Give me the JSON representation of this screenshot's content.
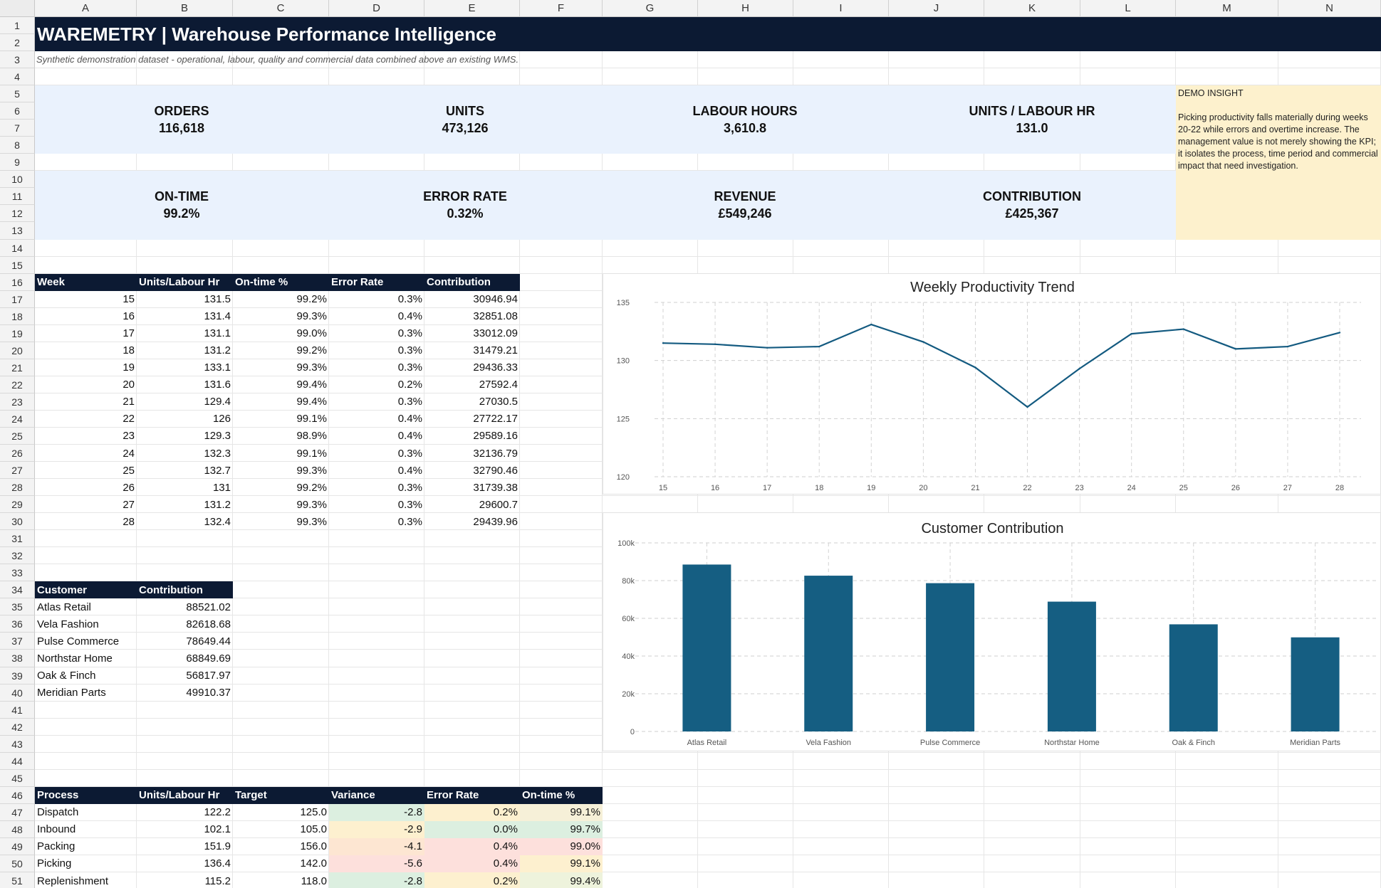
{
  "columns": [
    "A",
    "B",
    "C",
    "D",
    "E",
    "F",
    "G",
    "H",
    "I",
    "J",
    "K",
    "L",
    "M",
    "N"
  ],
  "row_count": 51,
  "title": "WAREMETRY | Warehouse Performance Intelligence",
  "subtitle": "Synthetic demonstration dataset - operational, labour, quality and commercial data combined above an existing WMS.",
  "kpis_row1": [
    {
      "label": "ORDERS",
      "value": "116,618"
    },
    {
      "label": "UNITS",
      "value": "473,126"
    },
    {
      "label": "LABOUR HOURS",
      "value": "3,610.8"
    },
    {
      "label": "UNITS / LABOUR HR",
      "value": "131.0"
    }
  ],
  "kpis_row2": [
    {
      "label": "ON-TIME",
      "value": "99.2%"
    },
    {
      "label": "ERROR RATE",
      "value": "0.32%"
    },
    {
      "label": "REVENUE",
      "value": "£549,246"
    },
    {
      "label": "CONTRIBUTION",
      "value": "£425,367"
    }
  ],
  "insight": {
    "heading": "DEMO INSIGHT",
    "body": "Picking productivity falls materially during weeks 20-22 while errors and overtime increase. The management value is not merely showing the KPI; it isolates the process, time period and commercial impact that need investigation."
  },
  "weekly_table": {
    "headers": [
      "Week",
      "Units/Labour Hr",
      "On-time %",
      "Error Rate",
      "Contribution"
    ],
    "rows": [
      [
        "15",
        "131.5",
        "99.2%",
        "0.3%",
        "30946.94"
      ],
      [
        "16",
        "131.4",
        "99.3%",
        "0.4%",
        "32851.08"
      ],
      [
        "17",
        "131.1",
        "99.0%",
        "0.3%",
        "33012.09"
      ],
      [
        "18",
        "131.2",
        "99.2%",
        "0.3%",
        "31479.21"
      ],
      [
        "19",
        "133.1",
        "99.3%",
        "0.3%",
        "29436.33"
      ],
      [
        "20",
        "131.6",
        "99.4%",
        "0.2%",
        "27592.4"
      ],
      [
        "21",
        "129.4",
        "99.4%",
        "0.3%",
        "27030.5"
      ],
      [
        "22",
        "126",
        "99.1%",
        "0.4%",
        "27722.17"
      ],
      [
        "23",
        "129.3",
        "98.9%",
        "0.4%",
        "29589.16"
      ],
      [
        "24",
        "132.3",
        "99.1%",
        "0.3%",
        "32136.79"
      ],
      [
        "25",
        "132.7",
        "99.3%",
        "0.4%",
        "32790.46"
      ],
      [
        "26",
        "131",
        "99.2%",
        "0.3%",
        "31739.38"
      ],
      [
        "27",
        "131.2",
        "99.3%",
        "0.3%",
        "29600.7"
      ],
      [
        "28",
        "132.4",
        "99.3%",
        "0.3%",
        "29439.96"
      ]
    ]
  },
  "customer_table": {
    "headers": [
      "Customer",
      "Contribution"
    ],
    "rows": [
      [
        "Atlas Retail",
        "88521.02"
      ],
      [
        "Vela Fashion",
        "82618.68"
      ],
      [
        "Pulse Commerce",
        "78649.44"
      ],
      [
        "Northstar Home",
        "68849.69"
      ],
      [
        "Oak & Finch",
        "56817.97"
      ],
      [
        "Meridian Parts",
        "49910.37"
      ]
    ]
  },
  "process_table": {
    "headers": [
      "Process",
      "Units/Labour Hr",
      "Target",
      "Variance",
      "Error Rate",
      "On-time %"
    ],
    "rows": [
      [
        "Dispatch",
        "122.2",
        "125.0",
        "-2.8",
        "0.2%",
        "99.1%"
      ],
      [
        "Inbound",
        "102.1",
        "105.0",
        "-2.9",
        "0.0%",
        "99.7%"
      ],
      [
        "Packing",
        "151.9",
        "156.0",
        "-4.1",
        "0.4%",
        "99.0%"
      ],
      [
        "Picking",
        "136.4",
        "142.0",
        "-5.6",
        "0.4%",
        "99.1%"
      ],
      [
        "Replenishment",
        "115.2",
        "118.0",
        "-2.8",
        "0.2%",
        "99.4%"
      ]
    ],
    "cell_colors": [
      [
        null,
        null,
        null,
        "#dcefe0",
        "#fdf0cf",
        "#f6f0d8"
      ],
      [
        null,
        null,
        null,
        "#fdf0cf",
        "#dcefe0",
        "#dcefe0"
      ],
      [
        null,
        null,
        null,
        "#fde6d2",
        "#fde0dc",
        "#fde0dc"
      ],
      [
        null,
        null,
        null,
        "#fde0dc",
        "#fde0dc",
        "#fdf0cf"
      ],
      [
        null,
        null,
        null,
        "#dcefe0",
        "#fdf0cf",
        "#eef3dc"
      ]
    ]
  },
  "chart_data": [
    {
      "type": "line",
      "title": "Weekly Productivity Trend",
      "x": [
        "15",
        "16",
        "17",
        "18",
        "19",
        "20",
        "21",
        "22",
        "23",
        "24",
        "25",
        "26",
        "27",
        "28"
      ],
      "series": [
        {
          "values": [
            131.5,
            131.4,
            131.1,
            131.2,
            133.1,
            131.6,
            129.4,
            126,
            129.3,
            132.3,
            132.7,
            131,
            131.2,
            132.4
          ]
        }
      ],
      "ylim": [
        120,
        135
      ],
      "yticks": [
        "120",
        "125",
        "130",
        "135"
      ],
      "grid": true,
      "color": "#135a80"
    },
    {
      "type": "bar",
      "title": "Customer Contribution",
      "categories": [
        "Atlas Retail",
        "Vela Fashion",
        "Pulse Commerce",
        "Northstar Home",
        "Oak & Finch",
        "Meridian Parts"
      ],
      "values": [
        88521.02,
        82618.68,
        78649.44,
        68849.69,
        56817.97,
        49910.37
      ],
      "ylim": [
        0,
        100000
      ],
      "yticks": [
        "0",
        "20k",
        "40k",
        "60k",
        "80k",
        "100k"
      ],
      "grid": true,
      "color": "#155e82"
    }
  ]
}
